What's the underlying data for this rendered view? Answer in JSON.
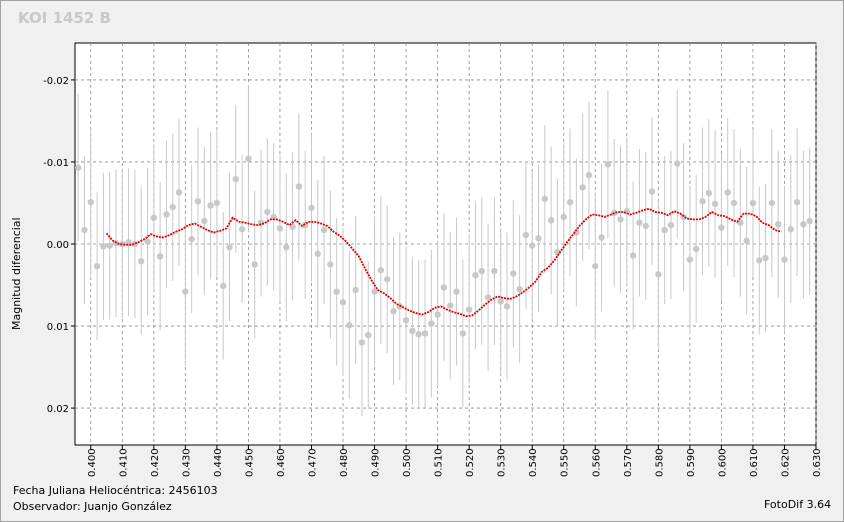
{
  "chart_data": {
    "type": "scatter",
    "title": "KOI 1452 B",
    "xlabel": "",
    "ylabel": "Magnitud diferencial",
    "y_inverted": true,
    "xlim": [
      0.395,
      0.63
    ],
    "ylim": [
      -0.0245,
      0.0245
    ],
    "x_ticks": [
      "0.400",
      "0.410",
      "0.420",
      "0.430",
      "0.440",
      "0.450",
      "0.460",
      "0.470",
      "0.480",
      "0.490",
      "0.500",
      "0.510",
      "0.520",
      "0.530",
      "0.540",
      "0.550",
      "0.560",
      "0.570",
      "0.580",
      "0.590",
      "0.600",
      "0.610",
      "0.620",
      "0.630"
    ],
    "y_ticks": [
      "-0.02",
      "-0.01",
      "0.00",
      "0.01",
      "0.02"
    ],
    "grid": true,
    "point_color": "#c8c8c8",
    "errorbar_color": "#c8c8c8",
    "trend_color": "#e00000",
    "series": [
      {
        "kind": "points",
        "errorbar": 0.009,
        "x": [
          0.396,
          0.398,
          0.4,
          0.402,
          0.404,
          0.406,
          0.408,
          0.41,
          0.412,
          0.414,
          0.416,
          0.418,
          0.42,
          0.422,
          0.424,
          0.426,
          0.428,
          0.43,
          0.432,
          0.434,
          0.436,
          0.438,
          0.44,
          0.442,
          0.444,
          0.446,
          0.448,
          0.45,
          0.452,
          0.454,
          0.456,
          0.458,
          0.46,
          0.462,
          0.464,
          0.466,
          0.468,
          0.47,
          0.472,
          0.474,
          0.476,
          0.478,
          0.48,
          0.482,
          0.484,
          0.486,
          0.488,
          0.49,
          0.492,
          0.494,
          0.496,
          0.498,
          0.5,
          0.502,
          0.504,
          0.506,
          0.508,
          0.51,
          0.512,
          0.514,
          0.516,
          0.518,
          0.52,
          0.522,
          0.524,
          0.526,
          0.528,
          0.53,
          0.532,
          0.534,
          0.536,
          0.538,
          0.54,
          0.542,
          0.544,
          0.546,
          0.548,
          0.55,
          0.552,
          0.554,
          0.556,
          0.558,
          0.56,
          0.562,
          0.564,
          0.566,
          0.568,
          0.57,
          0.572,
          0.574,
          0.576,
          0.578,
          0.58,
          0.582,
          0.584,
          0.586,
          0.588,
          0.59,
          0.592,
          0.594,
          0.596,
          0.598,
          0.6,
          0.602,
          0.604,
          0.606,
          0.608,
          0.61,
          0.612,
          0.614,
          0.616,
          0.618,
          0.62,
          0.622,
          0.624,
          0.626,
          0.628
        ],
        "y": [
          -0.0093,
          -0.0017,
          -0.0051,
          0.0027,
          0.0003,
          0.0002,
          -0.0001,
          0.0,
          -0.0002,
          0.0,
          0.0021,
          -0.0003,
          -0.0032,
          0.0015,
          -0.0036,
          -0.0045,
          -0.0063,
          0.0058,
          -0.0006,
          -0.0052,
          -0.0028,
          -0.0047,
          -0.005,
          0.0051,
          0.0004,
          -0.0079,
          -0.0018,
          -0.0104,
          0.0025,
          -0.0026,
          -0.0039,
          -0.0033,
          -0.0019,
          0.0004,
          -0.0021,
          -0.007,
          -0.0023,
          -0.0044,
          0.0012,
          -0.0017,
          0.0025,
          0.0058,
          0.0071,
          0.0099,
          0.0056,
          0.012,
          0.0111,
          0.0058,
          0.0032,
          0.0043,
          0.0082,
          0.0076,
          0.0093,
          0.0106,
          0.011,
          0.0109,
          0.0097,
          0.0086,
          0.0053,
          0.0075,
          0.0058,
          0.0109,
          0.008,
          0.0038,
          0.0033,
          0.0065,
          0.0033,
          0.007,
          0.0076,
          0.0036,
          0.0055,
          -0.0011,
          0.0002,
          -0.0007,
          -0.0055,
          -0.0029,
          0.001,
          -0.0033,
          -0.0051,
          -0.0014,
          -0.0069,
          -0.0084,
          0.0027,
          -0.0008,
          -0.0097,
          -0.0038,
          -0.003,
          -0.004,
          0.0014,
          -0.0026,
          -0.0022,
          -0.0064,
          0.0037,
          -0.0017,
          -0.0023,
          -0.0098,
          -0.0033,
          0.0019,
          0.0006,
          -0.0052,
          -0.0062,
          -0.0049,
          -0.002,
          -0.0063,
          -0.005,
          -0.0026,
          -0.0004,
          -0.005,
          0.002,
          0.0017,
          -0.005,
          -0.0024,
          0.0019,
          -0.0018,
          -0.0051,
          -0.0024,
          -0.0028
        ]
      },
      {
        "kind": "trend",
        "x": [
          0.405,
          0.407,
          0.409,
          0.411,
          0.413,
          0.415,
          0.417,
          0.419,
          0.421,
          0.423,
          0.425,
          0.427,
          0.429,
          0.431,
          0.433,
          0.435,
          0.437,
          0.439,
          0.441,
          0.443,
          0.445,
          0.447,
          0.449,
          0.451,
          0.453,
          0.455,
          0.457,
          0.459,
          0.461,
          0.463,
          0.465,
          0.467,
          0.469,
          0.471,
          0.473,
          0.475,
          0.477,
          0.479,
          0.481,
          0.483,
          0.485,
          0.487,
          0.489,
          0.491,
          0.493,
          0.495,
          0.497,
          0.499,
          0.501,
          0.503,
          0.505,
          0.507,
          0.509,
          0.511,
          0.513,
          0.515,
          0.517,
          0.519,
          0.521,
          0.523,
          0.525,
          0.527,
          0.529,
          0.531,
          0.533,
          0.535,
          0.537,
          0.539,
          0.541,
          0.543,
          0.545,
          0.547,
          0.549,
          0.551,
          0.553,
          0.555,
          0.557,
          0.559,
          0.561,
          0.563,
          0.565,
          0.567,
          0.569,
          0.571,
          0.573,
          0.575,
          0.577,
          0.579,
          0.581,
          0.583,
          0.585,
          0.587,
          0.589,
          0.591,
          0.593,
          0.595,
          0.597,
          0.599,
          0.601,
          0.603,
          0.605,
          0.607,
          0.609,
          0.611,
          0.613,
          0.615,
          0.617,
          0.619
        ],
        "y": [
          -0.0013,
          -0.0004,
          0.0,
          0.0001,
          0.0001,
          -0.0002,
          -0.0006,
          -0.0012,
          -0.0009,
          -0.0008,
          -0.0011,
          -0.0015,
          -0.0018,
          -0.0023,
          -0.0025,
          -0.0021,
          -0.0017,
          -0.0014,
          -0.0016,
          -0.0019,
          -0.0032,
          -0.0027,
          -0.0026,
          -0.0024,
          -0.0023,
          -0.0025,
          -0.003,
          -0.003,
          -0.0027,
          -0.0023,
          -0.0029,
          -0.0022,
          -0.0027,
          -0.0027,
          -0.0025,
          -0.0022,
          -0.0015,
          -0.001,
          -0.0003,
          0.0006,
          0.0015,
          0.003,
          0.0044,
          0.0056,
          0.006,
          0.0066,
          0.0073,
          0.0077,
          0.0081,
          0.0084,
          0.0086,
          0.0083,
          0.0078,
          0.0076,
          0.008,
          0.0083,
          0.0085,
          0.0088,
          0.0087,
          0.0081,
          0.0074,
          0.0068,
          0.0064,
          0.0066,
          0.0067,
          0.0064,
          0.0059,
          0.0053,
          0.0046,
          0.0034,
          0.0029,
          0.002,
          0.0009,
          -0.0002,
          -0.0012,
          -0.0022,
          -0.003,
          -0.0036,
          -0.0035,
          -0.0033,
          -0.0036,
          -0.0039,
          -0.0039,
          -0.0036,
          -0.0038,
          -0.0041,
          -0.0043,
          -0.0039,
          -0.0038,
          -0.0035,
          -0.004,
          -0.0037,
          -0.0031,
          -0.003,
          -0.003,
          -0.0033,
          -0.0039,
          -0.0035,
          -0.0034,
          -0.003,
          -0.0027,
          -0.0037,
          -0.0037,
          -0.0034,
          -0.0026,
          -0.0023,
          -0.0017,
          -0.0015
        ]
      }
    ]
  },
  "footer": {
    "date_line": "Fecha Juliana Heliocéntrica: 2456103",
    "observer_line": "Observador: Juanjo González",
    "software": "FotoDif 3.64"
  }
}
